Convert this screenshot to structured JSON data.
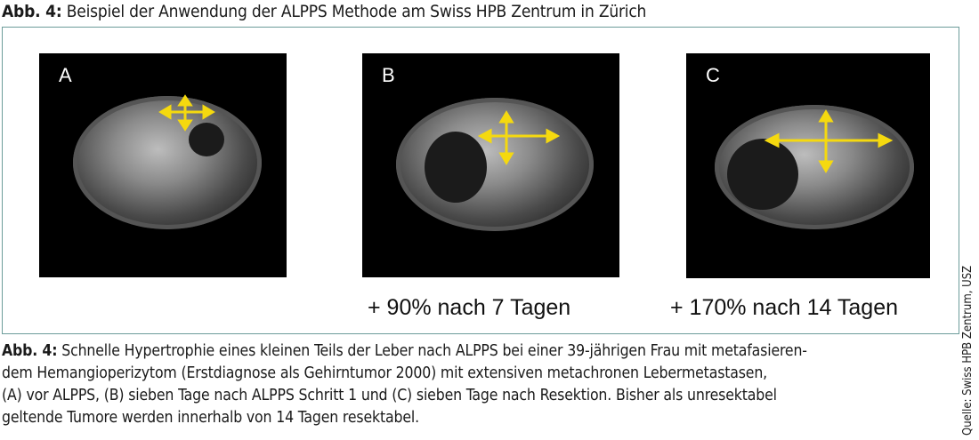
{
  "figure": {
    "title_label": "Abb. 4:",
    "title_text": "Beispiel der Anwendung der ALPPS Methode am Swiss HPB Zentrum in Zürich",
    "panels": [
      {
        "label": "A",
        "growth": ""
      },
      {
        "label": "B",
        "growth": "+ 90% nach 7 Tagen"
      },
      {
        "label": "C",
        "growth": "+ 170% nach 14 Tagen"
      }
    ],
    "arrow_color": "#f5d90f",
    "frame_color": "#6c9c9a",
    "source": "Quelle: Swiss HPB Zentrum, USZ",
    "caption_label": "Abb. 4:",
    "caption_lines": [
      "Schnelle Hypertrophie eines kleinen Teils der Leber nach ALPPS bei einer 39-jährigen Frau mit metafasieren-",
      "dem Hemangioperizytom (Erstdiagnose als Gehirntumor 2000) mit extensiven metachronen Lebermetastasen,",
      "(A) vor ALPPS, (B) sieben Tage nach ALPPS Schritt 1 und (C) sieben Tage nach Resektion. Bisher als unresektabel",
      "geltende Tumore werden innerhalb von 14 Tagen resektabel."
    ]
  }
}
